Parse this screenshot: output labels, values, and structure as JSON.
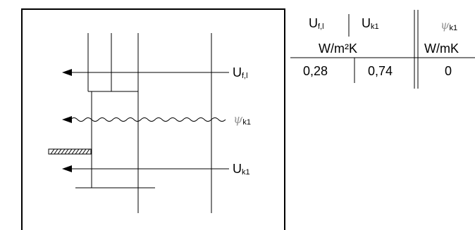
{
  "diagram": {
    "labels": {
      "u_fl_base": "U",
      "u_fl_sub": "f,l",
      "psi_symbol": "ψ",
      "psi_sub": "k1",
      "u_k1_base": "U",
      "u_k1_sub": "k1"
    }
  },
  "table": {
    "headers": {
      "col1_base": "U",
      "col1_sub": "f,l",
      "col2_base": "U",
      "col2_sub": "k1",
      "col3_symbol": "ψ",
      "col3_sub": "k1"
    },
    "units": {
      "u_unit": "W/m²K",
      "psi_unit": "W/mK"
    },
    "values": {
      "u_fl": "0,28",
      "u_k1": "0,74",
      "psi_k1": "0"
    }
  }
}
